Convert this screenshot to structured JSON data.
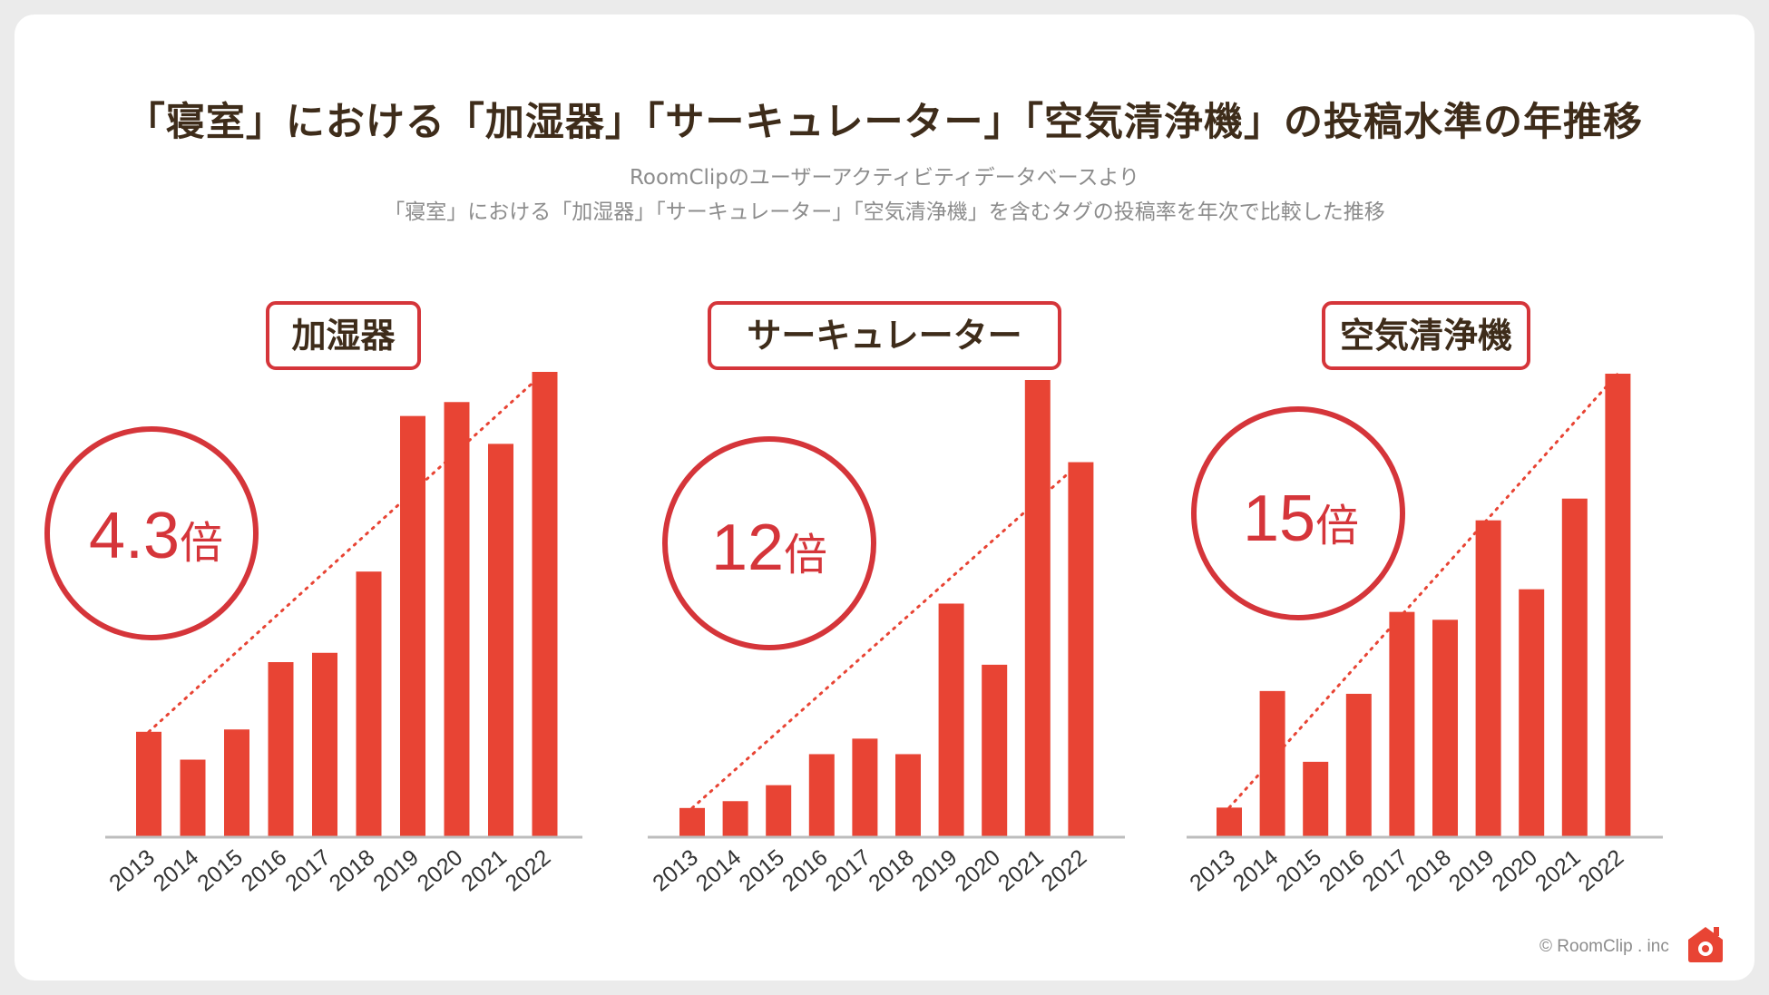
{
  "header": {
    "title": "「寝室」における「加湿器」「サーキュレーター」「空気清浄機」の投稿水準の年推移",
    "subtitle1": "RoomClipのユーザーアクティビティデータベースより",
    "subtitle2": "「寝室」における「加湿器」「サーキュレーター」「空気清浄機」を含むタグの投稿率を年次で比較した推移"
  },
  "colors": {
    "bar": "#e84434",
    "accent": "#d5353a",
    "axis": "#bdbdbd",
    "text": "#3e2c1a"
  },
  "chart_data": [
    {
      "type": "bar",
      "title": "加湿器",
      "badge": "4.3倍",
      "categories": [
        "2013",
        "2014",
        "2015",
        "2016",
        "2017",
        "2018",
        "2019",
        "2020",
        "2021",
        "2022"
      ],
      "values": [
        22.5,
        16.5,
        23,
        37.5,
        39.5,
        57,
        90.5,
        93.5,
        84.5,
        100
      ],
      "ylim": [
        0,
        100
      ],
      "trend": [
        22.5,
        100
      ]
    },
    {
      "type": "bar",
      "title": "サーキュレーター",
      "badge": "12倍",
      "categories": [
        "2013",
        "2014",
        "2015",
        "2016",
        "2017",
        "2018",
        "2019",
        "2020",
        "2021",
        "2022"
      ],
      "values": [
        6.2,
        7.7,
        11.2,
        18,
        21.4,
        18,
        51,
        37.6,
        100,
        82
      ],
      "ylim": [
        0,
        100
      ],
      "trend": [
        6.2,
        82
      ]
    },
    {
      "type": "bar",
      "title": "空気清浄機",
      "badge": "15倍",
      "categories": [
        "2013",
        "2014",
        "2015",
        "2016",
        "2017",
        "2018",
        "2019",
        "2020",
        "2021",
        "2022"
      ],
      "values": [
        6.2,
        31.4,
        16.1,
        30.8,
        48.5,
        46.8,
        68.3,
        53.4,
        73,
        100
      ],
      "ylim": [
        0,
        100
      ],
      "trend": [
        6.2,
        100
      ]
    }
  ],
  "footer": {
    "copyright": "© RoomClip . inc"
  }
}
